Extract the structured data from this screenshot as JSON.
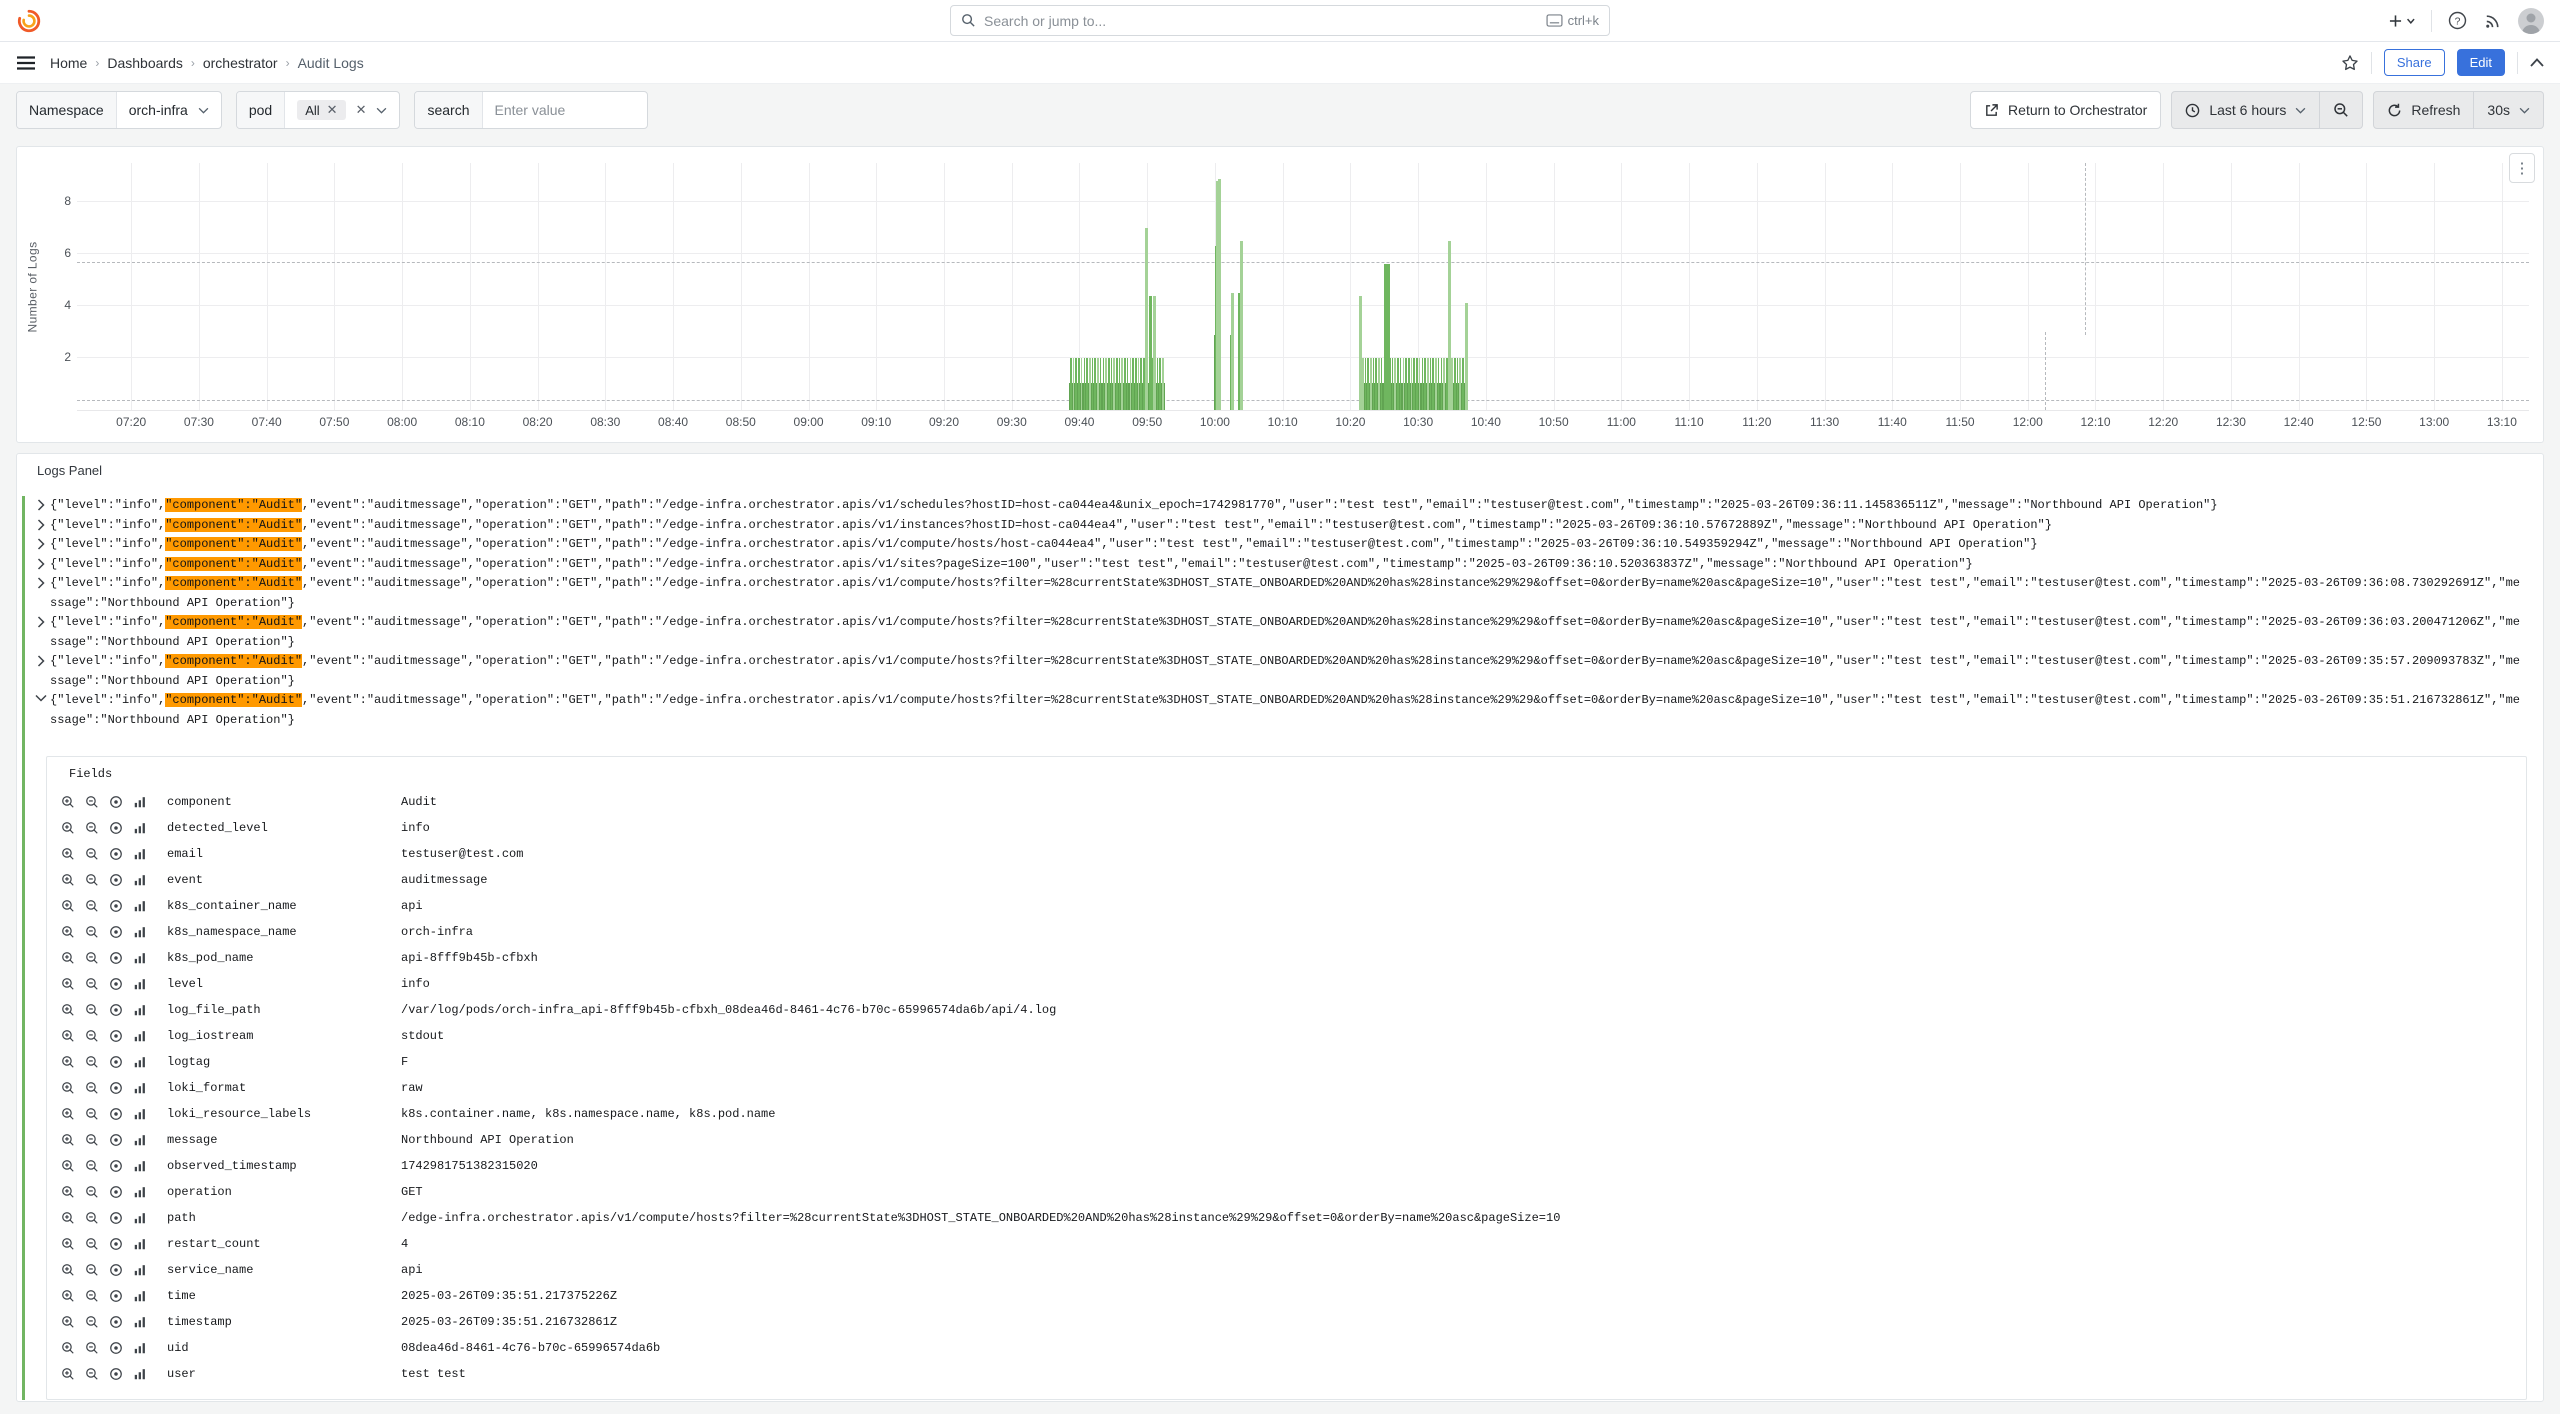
{
  "topbar": {
    "search_placeholder": "Search or jump to...",
    "shortcut": "ctrl+k"
  },
  "breadcrumb": {
    "items": [
      "Home",
      "Dashboards",
      "orchestrator",
      "Audit Logs"
    ]
  },
  "actions": {
    "share": "Share",
    "edit": "Edit"
  },
  "filters": {
    "namespace_label": "Namespace",
    "namespace_value": "orch-infra",
    "pod_label": "pod",
    "pod_value": "All",
    "search_label": "search",
    "search_placeholder": "Enter value"
  },
  "toolbar_right": {
    "return_button": "Return to Orchestrator",
    "time_range": "Last 6 hours",
    "refresh_label": "Refresh",
    "interval": "30s"
  },
  "chart_data": {
    "type": "bar",
    "title": "",
    "ylabel": "Number of Logs",
    "yticks": [
      2,
      4,
      6,
      8
    ],
    "ylim": [
      0,
      9.5
    ],
    "x_axis_start": "07:12",
    "x_axis_end": "13:14",
    "x_ticks": [
      "07:20",
      "07:30",
      "07:40",
      "07:50",
      "08:00",
      "08:10",
      "08:20",
      "08:30",
      "08:40",
      "08:50",
      "09:00",
      "09:10",
      "09:20",
      "09:30",
      "09:40",
      "09:50",
      "10:00",
      "10:10",
      "10:20",
      "10:30",
      "10:40",
      "10:50",
      "11:00",
      "11:10",
      "11:20",
      "11:30",
      "11:40",
      "11:50",
      "12:00",
      "12:10",
      "12:20",
      "12:30",
      "12:40",
      "12:50",
      "13:00",
      "13:10"
    ],
    "grid": true,
    "dashed_h_lines": [
      5.65,
      0.35
    ],
    "dashed_v_lines": [
      {
        "m": 288.5,
        "segment": "upper"
      },
      {
        "m": 282.5,
        "segment": "lower"
      }
    ],
    "bar_color": "#6fb65f",
    "bar_color_light": "#a4d297",
    "bars_minutes_after_0720": [
      {
        "kind": "block",
        "from": 138.5,
        "to": 152.6,
        "h": 1.05
      },
      {
        "kind": "comb",
        "from": 138.6,
        "to": 152.5,
        "step": 0.4,
        "v": 2.0
      },
      {
        "kind": "bar",
        "t": 149.7,
        "v": 7.0,
        "light": true,
        "w": 3
      },
      {
        "kind": "bar",
        "t": 150.3,
        "v": 4.4,
        "w": 3
      },
      {
        "kind": "bar",
        "t": 150.8,
        "v": 4.4,
        "light": true,
        "w": 3
      },
      {
        "kind": "block",
        "from": 159.9,
        "to": 160.6,
        "h": 2.9
      },
      {
        "kind": "bar",
        "t": 160.0,
        "v": 6.3,
        "w": 4
      },
      {
        "kind": "bar",
        "t": 160.1,
        "v": 8.8,
        "light": true,
        "w": 3
      },
      {
        "kind": "bar",
        "t": 160.45,
        "v": 8.9,
        "light": true,
        "w": 3
      },
      {
        "kind": "bar",
        "t": 162.2,
        "v": 2.9,
        "w": 4
      },
      {
        "kind": "bar",
        "t": 162.3,
        "v": 4.5,
        "light": true,
        "w": 3
      },
      {
        "kind": "bar",
        "t": 163.4,
        "v": 4.5,
        "w": 4
      },
      {
        "kind": "bar",
        "t": 163.75,
        "v": 6.5,
        "light": true,
        "w": 3
      },
      {
        "kind": "block",
        "from": 181.2,
        "to": 197.2,
        "h": 1.05
      },
      {
        "kind": "comb",
        "from": 181.3,
        "to": 197.1,
        "step": 0.4,
        "v": 2.0
      },
      {
        "kind": "bar",
        "t": 181.3,
        "v": 4.4,
        "light": true,
        "w": 3
      },
      {
        "kind": "bar",
        "t": 185.0,
        "v": 5.6,
        "w": 3
      },
      {
        "kind": "bar",
        "t": 185.45,
        "v": 5.6,
        "w": 3
      },
      {
        "kind": "bar",
        "t": 194.4,
        "v": 6.5,
        "light": true,
        "w": 3
      },
      {
        "kind": "bar",
        "t": 196.9,
        "v": 4.1,
        "light": true,
        "w": 3
      }
    ]
  },
  "logs_panel": {
    "title": "Logs Panel",
    "line_prefix": "{\"level\":\"info\",",
    "highlight": "\"component\":\"Audit\"",
    "rows": [
      {
        "expanded": false,
        "post": ",\"event\":\"auditmessage\",\"operation\":\"GET\",\"path\":\"/edge-infra.orchestrator.apis/v1/schedules?hostID=host-ca044ea4&unix_epoch=1742981770\",\"user\":\"test test\",\"email\":\"testuser@test.com\",\"timestamp\":\"2025-03-26T09:36:11.145836511Z\",\"message\":\"Northbound API Operation\"}"
      },
      {
        "expanded": false,
        "post": ",\"event\":\"auditmessage\",\"operation\":\"GET\",\"path\":\"/edge-infra.orchestrator.apis/v1/instances?hostID=host-ca044ea4\",\"user\":\"test test\",\"email\":\"testuser@test.com\",\"timestamp\":\"2025-03-26T09:36:10.57672889Z\",\"message\":\"Northbound API Operation\"}"
      },
      {
        "expanded": false,
        "post": ",\"event\":\"auditmessage\",\"operation\":\"GET\",\"path\":\"/edge-infra.orchestrator.apis/v1/compute/hosts/host-ca044ea4\",\"user\":\"test test\",\"email\":\"testuser@test.com\",\"timestamp\":\"2025-03-26T09:36:10.549359294Z\",\"message\":\"Northbound API Operation\"}"
      },
      {
        "expanded": false,
        "post": ",\"event\":\"auditmessage\",\"operation\":\"GET\",\"path\":\"/edge-infra.orchestrator.apis/v1/sites?pageSize=100\",\"user\":\"test test\",\"email\":\"testuser@test.com\",\"timestamp\":\"2025-03-26T09:36:10.520363837Z\",\"message\":\"Northbound API Operation\"}"
      },
      {
        "expanded": false,
        "post": ",\"event\":\"auditmessage\",\"operation\":\"GET\",\"path\":\"/edge-infra.orchestrator.apis/v1/compute/hosts?filter=%28currentState%3DHOST_STATE_ONBOARDED%20AND%20has%28instance%29%29&offset=0&orderBy=name%20asc&pageSize=10\",\"user\":\"test test\",\"email\":\"testuser@test.com\",\"timestamp\":\"2025-03-26T09:36:08.730292691Z\",\"message\":\"Northbound API Operation\"}"
      },
      {
        "expanded": false,
        "post": ",\"event\":\"auditmessage\",\"operation\":\"GET\",\"path\":\"/edge-infra.orchestrator.apis/v1/compute/hosts?filter=%28currentState%3DHOST_STATE_ONBOARDED%20AND%20has%28instance%29%29&offset=0&orderBy=name%20asc&pageSize=10\",\"user\":\"test test\",\"email\":\"testuser@test.com\",\"timestamp\":\"2025-03-26T09:36:03.200471206Z\",\"message\":\"Northbound API Operation\"}"
      },
      {
        "expanded": false,
        "post": ",\"event\":\"auditmessage\",\"operation\":\"GET\",\"path\":\"/edge-infra.orchestrator.apis/v1/compute/hosts?filter=%28currentState%3DHOST_STATE_ONBOARDED%20AND%20has%28instance%29%29&offset=0&orderBy=name%20asc&pageSize=10\",\"user\":\"test test\",\"email\":\"testuser@test.com\",\"timestamp\":\"2025-03-26T09:35:57.209093783Z\",\"message\":\"Northbound API Operation\"}"
      },
      {
        "expanded": true,
        "post": ",\"event\":\"auditmessage\",\"operation\":\"GET\",\"path\":\"/edge-infra.orchestrator.apis/v1/compute/hosts?filter=%28currentState%3DHOST_STATE_ONBOARDED%20AND%20has%28instance%29%29&offset=0&orderBy=name%20asc&pageSize=10\",\"user\":\"test test\",\"email\":\"testuser@test.com\",\"timestamp\":\"2025-03-26T09:35:51.216732861Z\",\"message\":\"Northbound API Operation\"}"
      }
    ],
    "fields_title": "Fields",
    "fields": [
      {
        "name": "component",
        "value": "Audit"
      },
      {
        "name": "detected_level",
        "value": "info"
      },
      {
        "name": "email",
        "value": "testuser@test.com"
      },
      {
        "name": "event",
        "value": "auditmessage"
      },
      {
        "name": "k8s_container_name",
        "value": "api"
      },
      {
        "name": "k8s_namespace_name",
        "value": "orch-infra"
      },
      {
        "name": "k8s_pod_name",
        "value": "api-8fff9b45b-cfbxh"
      },
      {
        "name": "level",
        "value": "info"
      },
      {
        "name": "log_file_path",
        "value": "/var/log/pods/orch-infra_api-8fff9b45b-cfbxh_08dea46d-8461-4c76-b70c-65996574da6b/api/4.log"
      },
      {
        "name": "log_iostream",
        "value": "stdout"
      },
      {
        "name": "logtag",
        "value": "F"
      },
      {
        "name": "loki_format",
        "value": "raw"
      },
      {
        "name": "loki_resource_labels",
        "value": "k8s.container.name, k8s.namespace.name, k8s.pod.name"
      },
      {
        "name": "message",
        "value": "Northbound API Operation"
      },
      {
        "name": "observed_timestamp",
        "value": "1742981751382315020"
      },
      {
        "name": "operation",
        "value": "GET"
      },
      {
        "name": "path",
        "value": "/edge-infra.orchestrator.apis/v1/compute/hosts?filter=%28currentState%3DHOST_STATE_ONBOARDED%20AND%20has%28instance%29%29&offset=0&orderBy=name%20asc&pageSize=10"
      },
      {
        "name": "restart_count",
        "value": "4"
      },
      {
        "name": "service_name",
        "value": "api"
      },
      {
        "name": "time",
        "value": "2025-03-26T09:35:51.217375226Z"
      },
      {
        "name": "timestamp",
        "value": "2025-03-26T09:35:51.216732861Z"
      },
      {
        "name": "uid",
        "value": "08dea46d-8461-4c76-b70c-65996574da6b"
      },
      {
        "name": "user",
        "value": "test test"
      }
    ]
  },
  "colors": {
    "accent_blue": "#3871dc",
    "highlight_orange": "#ff9900",
    "log_level_green": "#71b562",
    "bar_green": "#6fb65f"
  }
}
